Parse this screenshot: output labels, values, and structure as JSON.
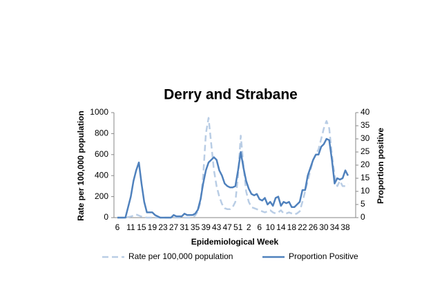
{
  "chart_data": {
    "type": "line",
    "title": "Derry and Strabane",
    "x_label": "Epidemiological Week",
    "y_label": "Rate per 100,000 population",
    "y2_label": "Proportion positive",
    "categories": [
      "6",
      null,
      null,
      null,
      null,
      "11",
      null,
      null,
      null,
      "15",
      null,
      null,
      null,
      "19",
      null,
      null,
      null,
      "23",
      null,
      null,
      null,
      "27",
      null,
      null,
      null,
      "31",
      null,
      null,
      null,
      "35",
      null,
      null,
      null,
      "39",
      null,
      null,
      null,
      "43",
      null,
      null,
      null,
      "47",
      null,
      null,
      null,
      "51",
      null,
      null,
      null,
      "2",
      null,
      null,
      null,
      "6",
      null,
      null,
      null,
      "10",
      null,
      null,
      null,
      "14",
      null,
      null,
      null,
      "18",
      null,
      null,
      null,
      "22",
      null,
      null,
      null,
      "26",
      null,
      null,
      null,
      "30",
      null,
      null,
      null,
      "34",
      null,
      null,
      null,
      "38",
      null
    ],
    "series": [
      {
        "name": "Rate per 100,000 population",
        "color": "#b9cde5",
        "line_style": "dashed",
        "values": [
          0,
          0,
          0,
          0,
          5,
          10,
          20,
          30,
          20,
          10,
          5,
          0,
          0,
          0,
          0,
          0,
          0,
          0,
          0,
          0,
          0,
          0,
          0,
          0,
          0,
          0,
          0,
          0,
          5,
          20,
          60,
          150,
          400,
          800,
          950,
          700,
          450,
          300,
          200,
          130,
          90,
          80,
          80,
          100,
          150,
          400,
          780,
          500,
          250,
          150,
          100,
          90,
          80,
          70,
          60,
          50,
          60,
          70,
          50,
          40,
          50,
          70,
          40,
          40,
          50,
          40,
          30,
          40,
          60,
          150,
          250,
          350,
          450,
          550,
          600,
          650,
          750,
          850,
          920,
          850,
          600,
          400,
          300,
          350,
          300,
          300,
          320
        ]
      },
      {
        "name": "Proportion Positive",
        "color": "#4f81bd",
        "line_style": "solid",
        "axis": "y2",
        "values": [
          0,
          0,
          0,
          0,
          4,
          8,
          14,
          18,
          21,
          13,
          6,
          2,
          2,
          2,
          1,
          0.5,
          0,
          0,
          0,
          0,
          0,
          1,
          0.5,
          0.5,
          0.5,
          1.5,
          1,
          1,
          1,
          1.5,
          3,
          7,
          13,
          18,
          21,
          22,
          23,
          22,
          18,
          16,
          13,
          12,
          11.5,
          11.5,
          12,
          18,
          25,
          19,
          14,
          11,
          9,
          8.5,
          9,
          7,
          6.5,
          7.5,
          5,
          6,
          4.5,
          7.5,
          8,
          4.5,
          6,
          5.5,
          6,
          4,
          4,
          5,
          6,
          10.5,
          10.5,
          16,
          19,
          22,
          24,
          24,
          27,
          28,
          30,
          29.5,
          22,
          13,
          15,
          14.5,
          15,
          18,
          16
        ]
      }
    ],
    "ylim": [
      0,
      1000
    ],
    "yticks": [
      0,
      200,
      400,
      600,
      800,
      1000
    ],
    "y2lim": [
      0,
      40
    ],
    "y2ticks": [
      0,
      5,
      10,
      15,
      20,
      25,
      30,
      35,
      40
    ],
    "grid": false,
    "legend": "bottom"
  }
}
